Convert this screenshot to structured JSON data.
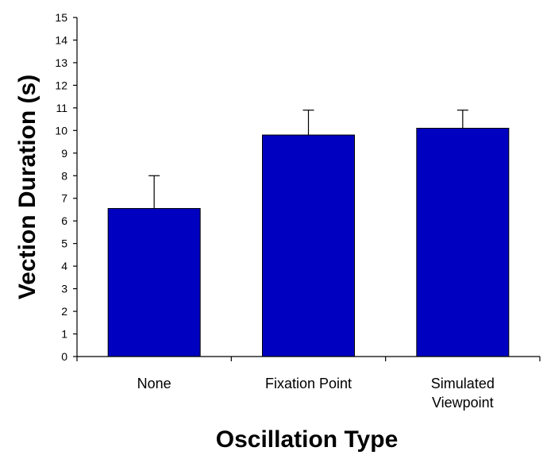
{
  "chart_data": {
    "type": "bar",
    "categories": [
      "None",
      "Fixation Point",
      "Simulated Viewpoint"
    ],
    "category_lines": [
      [
        "None"
      ],
      [
        "Fixation Point"
      ],
      [
        "Simulated",
        "Viewpoint"
      ]
    ],
    "values": [
      6.55,
      9.8,
      10.1
    ],
    "error_upper": [
      8.0,
      10.9,
      10.9
    ],
    "xlabel": "Oscillation Type",
    "ylabel": "Vection Duration (s)",
    "ylim": [
      0,
      15
    ],
    "yticks": [
      0,
      1,
      2,
      3,
      4,
      5,
      6,
      7,
      8,
      9,
      10,
      11,
      12,
      13,
      14,
      15
    ],
    "grid": false,
    "legend": "none",
    "bar_color": "#0000c0",
    "bar_edge_color": "#000000"
  }
}
